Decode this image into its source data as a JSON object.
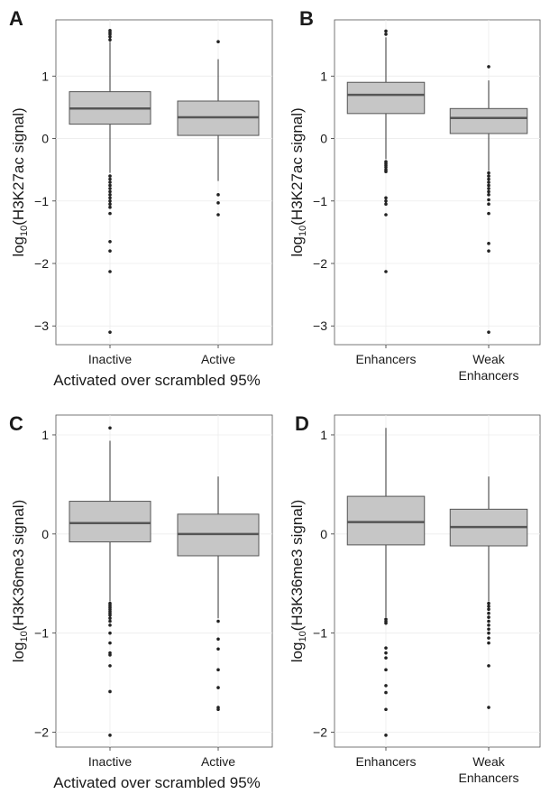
{
  "chart_data": [
    {
      "panel": "A",
      "type": "box",
      "ylabel": "log10(H3K27ac signal)",
      "xlabel": "Activated over scrambled 95%",
      "ylim": [
        -3.3,
        1.9
      ],
      "yticks": [
        -3,
        -2,
        -1,
        0,
        1
      ],
      "categories": [
        "Inactive",
        "Active"
      ],
      "boxes": [
        {
          "q1": 0.23,
          "median": 0.48,
          "q3": 0.75,
          "whisker_low": -0.55,
          "whisker_high": 1.55,
          "outliers": [
            1.58,
            1.63,
            1.67,
            1.7,
            1.73,
            -0.6,
            -0.65,
            -0.7,
            -0.75,
            -0.8,
            -0.85,
            -0.9,
            -0.95,
            -1.0,
            -1.05,
            -1.1,
            -1.2,
            -1.65,
            -1.8,
            -2.13,
            -3.1
          ]
        },
        {
          "q1": 0.05,
          "median": 0.34,
          "q3": 0.6,
          "whisker_low": -0.68,
          "whisker_high": 1.27,
          "outliers": [
            1.55,
            -0.9,
            -1.03,
            -1.22
          ]
        }
      ]
    },
    {
      "panel": "B",
      "type": "box",
      "ylabel": "log10(H3K27ac signal)",
      "xlabel": "",
      "ylim": [
        -3.3,
        1.9
      ],
      "yticks": [
        -3,
        -2,
        -1,
        0,
        1
      ],
      "categories": [
        "Enhancers",
        "Weak\nEnhancers"
      ],
      "boxes": [
        {
          "q1": 0.4,
          "median": 0.7,
          "q3": 0.9,
          "whisker_low": -0.33,
          "whisker_high": 1.62,
          "outliers": [
            1.67,
            1.72,
            -0.37,
            -0.4,
            -0.43,
            -0.46,
            -0.5,
            -0.53,
            -0.95,
            -1.0,
            -1.05,
            -1.22,
            -2.13
          ]
        },
        {
          "q1": 0.08,
          "median": 0.33,
          "q3": 0.48,
          "whisker_low": -0.52,
          "whisker_high": 0.93,
          "outliers": [
            1.15,
            -0.55,
            -0.6,
            -0.65,
            -0.7,
            -0.75,
            -0.8,
            -0.85,
            -0.9,
            -0.98,
            -1.05,
            -1.2,
            -1.68,
            -1.8,
            -3.1
          ]
        }
      ]
    },
    {
      "panel": "C",
      "type": "box",
      "ylabel": "log10(H3K36me3 signal)",
      "xlabel": "Activated over scrambled 95%",
      "ylim": [
        -2.15,
        1.2
      ],
      "yticks": [
        -2,
        -1,
        0,
        1
      ],
      "categories": [
        "Inactive",
        "Active"
      ],
      "boxes": [
        {
          "q1": -0.08,
          "median": 0.11,
          "q3": 0.33,
          "whisker_low": -0.68,
          "whisker_high": 0.94,
          "outliers": [
            1.07,
            -0.7,
            -0.72,
            -0.74,
            -0.76,
            -0.78,
            -0.8,
            -0.82,
            -0.85,
            -0.88,
            -0.92,
            -1.0,
            -1.1,
            -1.2,
            -1.22,
            -1.33,
            -1.59,
            -2.03
          ]
        },
        {
          "q1": -0.22,
          "median": 0.0,
          "q3": 0.2,
          "whisker_low": -0.85,
          "whisker_high": 0.58,
          "outliers": [
            -0.88,
            -1.06,
            -1.16,
            -1.37,
            -1.55,
            -1.75,
            -1.77
          ]
        }
      ]
    },
    {
      "panel": "D",
      "type": "box",
      "ylabel": "log10(H3K36me3 signal)",
      "xlabel": "",
      "ylim": [
        -2.15,
        1.2
      ],
      "yticks": [
        -2,
        -1,
        0,
        1
      ],
      "categories": [
        "Enhancers",
        "Weak\nEnhancers"
      ],
      "boxes": [
        {
          "q1": -0.11,
          "median": 0.12,
          "q3": 0.38,
          "whisker_low": -0.84,
          "whisker_high": 1.07,
          "outliers": [
            -0.86,
            -0.88,
            -0.9,
            -1.15,
            -1.2,
            -1.25,
            -1.37,
            -1.53,
            -1.6,
            -1.77,
            -2.03
          ]
        },
        {
          "q1": -0.12,
          "median": 0.07,
          "q3": 0.25,
          "whisker_low": -0.68,
          "whisker_high": 0.58,
          "outliers": [
            -0.7,
            -0.73,
            -0.76,
            -0.8,
            -0.84,
            -0.88,
            -0.92,
            -0.96,
            -1.0,
            -1.05,
            -1.1,
            -1.33,
            -1.75
          ]
        }
      ]
    }
  ]
}
